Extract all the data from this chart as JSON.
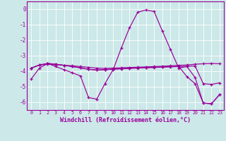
{
  "xlabel": "Windchill (Refroidissement éolien,°C)",
  "bg_color": "#cce8e8",
  "grid_color": "#ffffff",
  "line_color": "#990099",
  "hours": [
    0,
    1,
    2,
    3,
    4,
    5,
    6,
    7,
    8,
    9,
    10,
    11,
    12,
    13,
    14,
    15,
    16,
    17,
    18,
    19,
    20,
    21,
    22,
    23
  ],
  "line1": [
    -4.5,
    -3.8,
    -3.5,
    -3.7,
    -3.9,
    -4.1,
    -4.3,
    -5.7,
    -5.8,
    -4.8,
    -3.9,
    -2.5,
    -1.2,
    -0.2,
    -0.05,
    -0.15,
    -1.4,
    -2.6,
    -3.8,
    -3.7,
    -4.4,
    -6.05,
    -6.1,
    -5.5
  ],
  "line2": [
    -3.8,
    -3.6,
    -3.55,
    -3.58,
    -3.62,
    -3.65,
    -3.7,
    -3.75,
    -3.8,
    -3.82,
    -3.8,
    -3.78,
    -3.76,
    -3.74,
    -3.72,
    -3.7,
    -3.68,
    -3.65,
    -3.62,
    -3.6,
    -3.55,
    -3.52,
    -3.5,
    -3.52
  ],
  "line3": [
    -3.8,
    -3.6,
    -3.5,
    -3.55,
    -3.62,
    -3.7,
    -3.78,
    -3.88,
    -3.92,
    -3.9,
    -3.88,
    -3.85,
    -3.82,
    -3.8,
    -3.78,
    -3.76,
    -3.74,
    -3.72,
    -3.7,
    -3.68,
    -3.66,
    -4.8,
    -4.85,
    -4.75
  ],
  "line4": [
    -3.8,
    -3.6,
    -3.5,
    -3.55,
    -3.62,
    -3.7,
    -3.78,
    -3.88,
    -3.92,
    -3.9,
    -3.85,
    -3.82,
    -3.8,
    -3.78,
    -3.76,
    -3.74,
    -3.72,
    -3.7,
    -3.68,
    -4.35,
    -4.8,
    -6.05,
    -6.1,
    -5.5
  ],
  "ylim": [
    -6.5,
    0.5
  ],
  "yticks": [
    0,
    -1,
    -2,
    -3,
    -4,
    -5,
    -6
  ],
  "xtick_fontsize": 4.8,
  "ytick_fontsize": 5.5,
  "xlabel_fontsize": 6.0
}
